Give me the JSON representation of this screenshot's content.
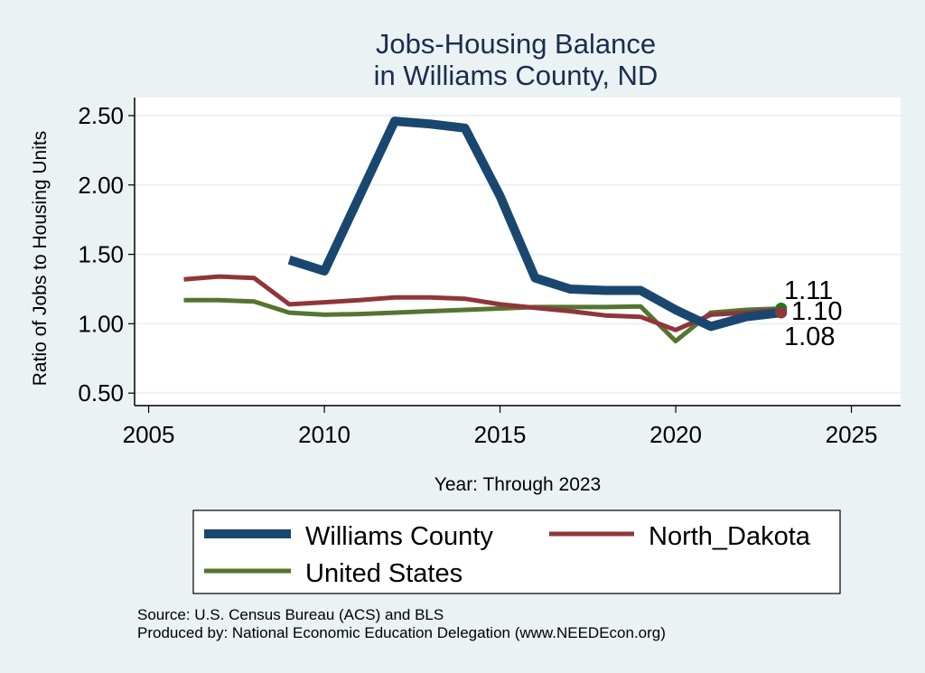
{
  "chart_data": {
    "type": "line",
    "title": [
      "Jobs-Housing Balance",
      "in Williams County, ND"
    ],
    "xlabel": "Year: Through 2023",
    "ylabel": "Ratio of Jobs to Housing Units",
    "xlim": [
      2004.6,
      2026.4
    ],
    "ylim": [
      0.41,
      2.63
    ],
    "xticks": [
      2005,
      2010,
      2015,
      2020,
      2025
    ],
    "xtick_labels": [
      "2005",
      "2010",
      "2015",
      "2020",
      "2025"
    ],
    "yticks": [
      0.5,
      1.0,
      1.5,
      2.0,
      2.5
    ],
    "ytick_labels": [
      "0.50",
      "1.00",
      "1.50",
      "2.00",
      "2.50"
    ],
    "grid": "horizontal",
    "legend_position": "bottom",
    "series": [
      {
        "name": "Williams County",
        "color": "#1A476F",
        "width": "thick",
        "x": [
          2009,
          2010,
          2011,
          2012,
          2013,
          2014,
          2015,
          2016,
          2017,
          2018,
          2019,
          2020,
          2021,
          2022,
          2023
        ],
        "values": [
          1.46,
          1.38,
          1.92,
          2.46,
          2.44,
          2.41,
          1.92,
          1.33,
          1.25,
          1.24,
          1.24,
          1.1,
          0.98,
          1.05,
          1.08
        ],
        "end_label": "1.08"
      },
      {
        "name": "North_Dakota",
        "color": "#90353B",
        "width": "medium",
        "x": [
          2006,
          2007,
          2008,
          2009,
          2010,
          2011,
          2012,
          2013,
          2014,
          2015,
          2016,
          2017,
          2018,
          2019,
          2020,
          2021,
          2022,
          2023
        ],
        "values": [
          1.32,
          1.34,
          1.33,
          1.14,
          1.155,
          1.17,
          1.19,
          1.19,
          1.18,
          1.14,
          1.115,
          1.09,
          1.06,
          1.05,
          0.955,
          1.065,
          1.08,
          1.1
        ],
        "end_label": "1.10"
      },
      {
        "name": "United States",
        "color": "#55752F",
        "width": "medium",
        "x": [
          2006,
          2007,
          2008,
          2009,
          2010,
          2011,
          2012,
          2013,
          2014,
          2015,
          2016,
          2017,
          2018,
          2019,
          2020,
          2021,
          2022,
          2023
        ],
        "values": [
          1.17,
          1.17,
          1.16,
          1.08,
          1.065,
          1.07,
          1.08,
          1.09,
          1.1,
          1.11,
          1.12,
          1.12,
          1.12,
          1.125,
          0.875,
          1.08,
          1.1,
          1.11
        ],
        "end_label": "1.11"
      }
    ],
    "end_labels_order": [
      "1.11",
      "1.10",
      "1.08"
    ],
    "notes": [
      "Source: U.S. Census Bureau (ACS) and BLS",
      "Produced by: National Economic Education Delegation (www.NEEDEcon.org)"
    ]
  }
}
